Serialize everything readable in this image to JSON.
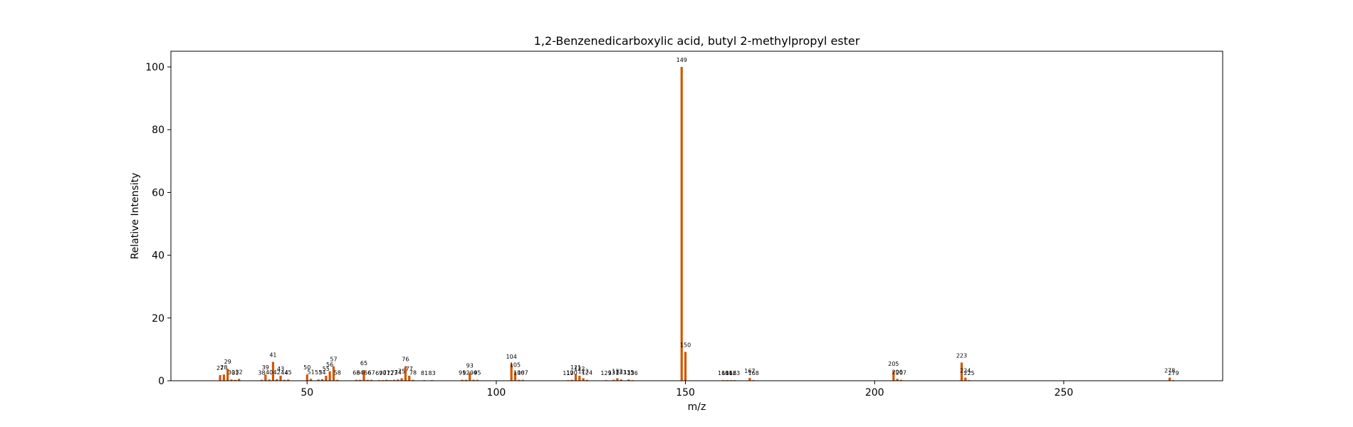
{
  "chart_data": {
    "type": "bar",
    "title": "1,2-Benzenedicarboxylic acid, butyl 2-methylpropyl ester",
    "xlabel": "m/z",
    "ylabel": "Relative Intensity",
    "xlim": [
      14,
      292
    ],
    "ylim": [
      0,
      105
    ],
    "xticks": [
      50,
      100,
      150,
      200,
      250
    ],
    "yticks": [
      0,
      20,
      40,
      60,
      80,
      100
    ],
    "grid": false,
    "bar_color": "#d45500",
    "peaks": [
      {
        "mz": 27,
        "intensity": 1.8
      },
      {
        "mz": 28,
        "intensity": 2.0
      },
      {
        "mz": 29,
        "intensity": 3.8
      },
      {
        "mz": 30,
        "intensity": 0.4
      },
      {
        "mz": 31,
        "intensity": 0.3
      },
      {
        "mz": 32,
        "intensity": 0.6
      },
      {
        "mz": 38,
        "intensity": 0.3
      },
      {
        "mz": 39,
        "intensity": 2.0
      },
      {
        "mz": 40,
        "intensity": 0.4
      },
      {
        "mz": 41,
        "intensity": 6.0
      },
      {
        "mz": 42,
        "intensity": 0.5
      },
      {
        "mz": 43,
        "intensity": 1.6
      },
      {
        "mz": 44,
        "intensity": 0.3
      },
      {
        "mz": 45,
        "intensity": 0.4
      },
      {
        "mz": 50,
        "intensity": 2.0
      },
      {
        "mz": 51,
        "intensity": 0.6
      },
      {
        "mz": 53,
        "intensity": 0.4
      },
      {
        "mz": 54,
        "intensity": 0.5
      },
      {
        "mz": 55,
        "intensity": 1.6
      },
      {
        "mz": 56,
        "intensity": 3.0
      },
      {
        "mz": 57,
        "intensity": 4.6
      },
      {
        "mz": 58,
        "intensity": 0.3
      },
      {
        "mz": 63,
        "intensity": 0.3
      },
      {
        "mz": 64,
        "intensity": 0.3
      },
      {
        "mz": 65,
        "intensity": 3.4
      },
      {
        "mz": 66,
        "intensity": 0.3
      },
      {
        "mz": 67,
        "intensity": 0.3
      },
      {
        "mz": 69,
        "intensity": 0.2
      },
      {
        "mz": 70,
        "intensity": 0.2
      },
      {
        "mz": 71,
        "intensity": 0.3
      },
      {
        "mz": 72,
        "intensity": 0.2
      },
      {
        "mz": 73,
        "intensity": 0.3
      },
      {
        "mz": 74,
        "intensity": 0.4
      },
      {
        "mz": 75,
        "intensity": 0.8
      },
      {
        "mz": 76,
        "intensity": 4.6
      },
      {
        "mz": 77,
        "intensity": 1.6
      },
      {
        "mz": 78,
        "intensity": 0.3
      },
      {
        "mz": 81,
        "intensity": 0.2
      },
      {
        "mz": 83,
        "intensity": 0.2
      },
      {
        "mz": 91,
        "intensity": 0.3
      },
      {
        "mz": 92,
        "intensity": 0.3
      },
      {
        "mz": 93,
        "intensity": 2.6
      },
      {
        "mz": 94,
        "intensity": 0.3
      },
      {
        "mz": 95,
        "intensity": 0.3
      },
      {
        "mz": 104,
        "intensity": 5.4
      },
      {
        "mz": 105,
        "intensity": 2.8
      },
      {
        "mz": 106,
        "intensity": 0.3
      },
      {
        "mz": 107,
        "intensity": 0.3
      },
      {
        "mz": 119,
        "intensity": 0.2
      },
      {
        "mz": 120,
        "intensity": 0.3
      },
      {
        "mz": 121,
        "intensity": 2.0
      },
      {
        "mz": 122,
        "intensity": 1.6
      },
      {
        "mz": 123,
        "intensity": 0.8
      },
      {
        "mz": 124,
        "intensity": 0.3
      },
      {
        "mz": 129,
        "intensity": 0.2
      },
      {
        "mz": 131,
        "intensity": 0.3
      },
      {
        "mz": 132,
        "intensity": 0.8
      },
      {
        "mz": 133,
        "intensity": 0.4
      },
      {
        "mz": 135,
        "intensity": 0.4
      },
      {
        "mz": 136,
        "intensity": 0.2
      },
      {
        "mz": 149,
        "intensity": 100
      },
      {
        "mz": 150,
        "intensity": 9.2
      },
      {
        "mz": 160,
        "intensity": 0.2
      },
      {
        "mz": 161,
        "intensity": 0.2
      },
      {
        "mz": 162,
        "intensity": 0.2
      },
      {
        "mz": 163,
        "intensity": 0.2
      },
      {
        "mz": 167,
        "intensity": 0.9
      },
      {
        "mz": 168,
        "intensity": 0.2
      },
      {
        "mz": 205,
        "intensity": 3.2
      },
      {
        "mz": 206,
        "intensity": 0.6
      },
      {
        "mz": 207,
        "intensity": 0.3
      },
      {
        "mz": 223,
        "intensity": 5.8
      },
      {
        "mz": 224,
        "intensity": 1.0
      },
      {
        "mz": 225,
        "intensity": 0.2
      },
      {
        "mz": 278,
        "intensity": 1.0
      },
      {
        "mz": 279,
        "intensity": 0.2
      }
    ]
  }
}
